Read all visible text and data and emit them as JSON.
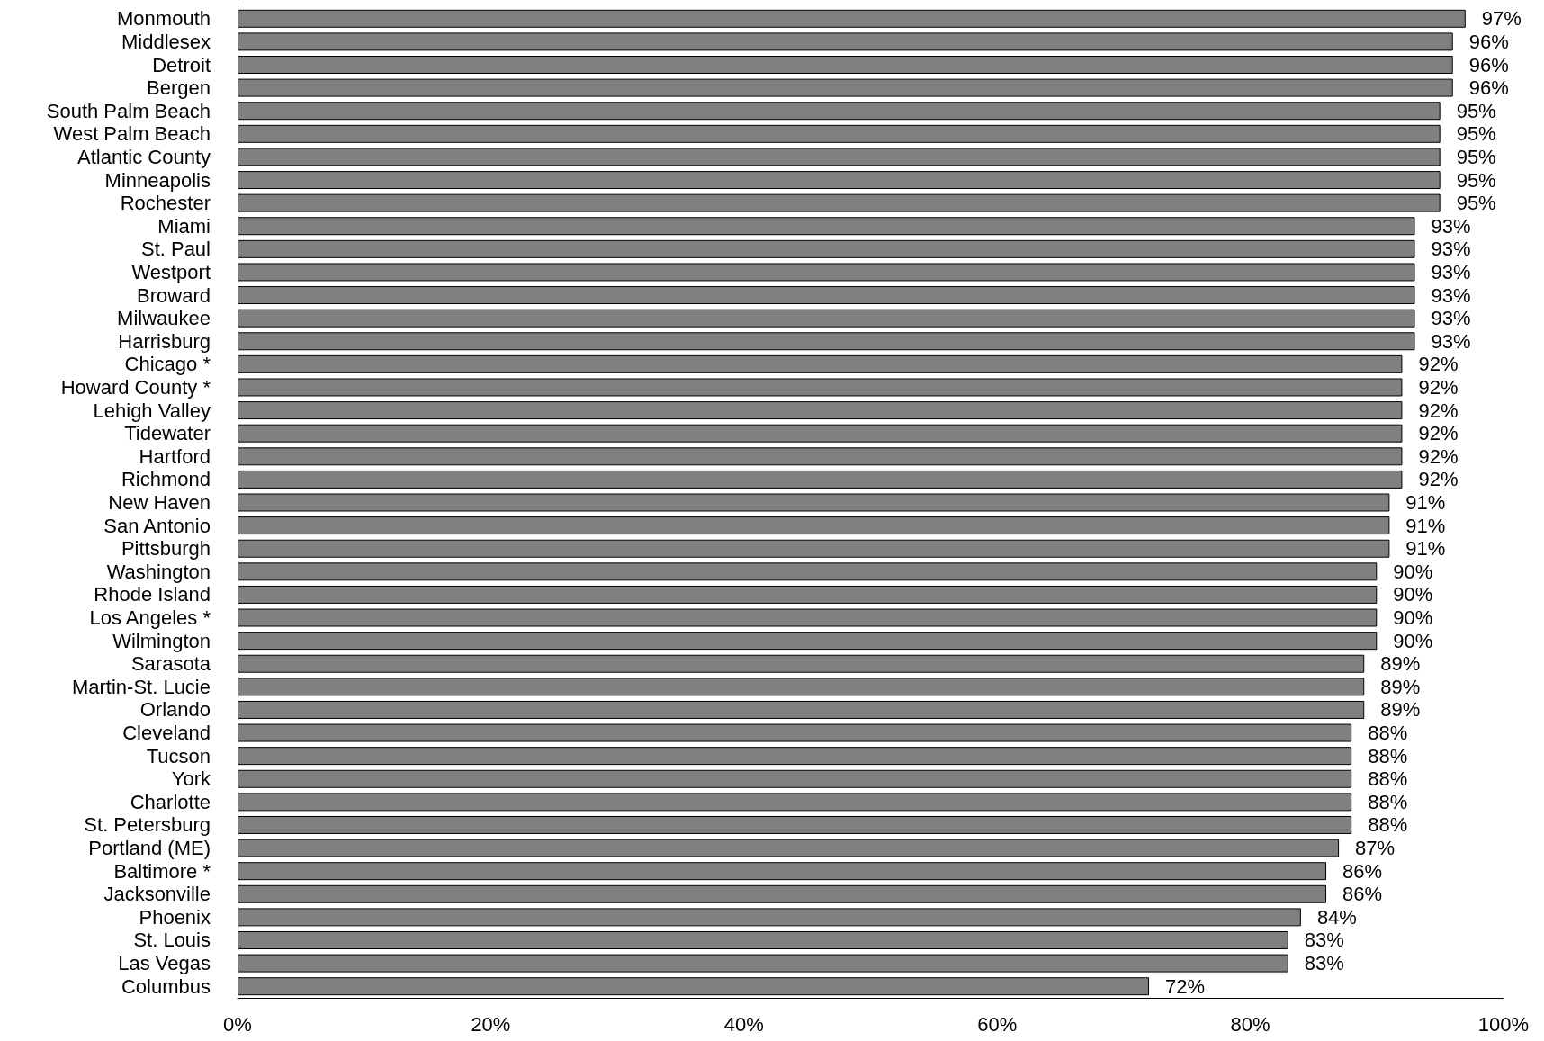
{
  "chart_data": {
    "type": "bar",
    "orientation": "horizontal",
    "categories": [
      "Monmouth",
      "Middlesex",
      "Detroit",
      "Bergen",
      "South Palm Beach",
      "West Palm Beach",
      "Atlantic County",
      "Minneapolis",
      "Rochester",
      "Miami",
      "St. Paul",
      "Westport",
      "Broward",
      "Milwaukee",
      "Harrisburg",
      "Chicago *",
      "Howard County *",
      "Lehigh Valley",
      "Tidewater",
      "Hartford",
      "Richmond",
      "New Haven",
      "San Antonio",
      "Pittsburgh",
      "Washington",
      "Rhode Island",
      "Los Angeles *",
      "Wilmington",
      "Sarasota",
      "Martin-St. Lucie",
      "Orlando",
      "Cleveland",
      "Tucson",
      "York",
      "Charlotte",
      "St. Petersburg",
      "Portland (ME)",
      "Baltimore *",
      "Jacksonville",
      "Phoenix",
      "St. Louis",
      "Las Vegas",
      "Columbus"
    ],
    "values": [
      97,
      96,
      96,
      96,
      95,
      95,
      95,
      95,
      95,
      93,
      93,
      93,
      93,
      93,
      93,
      92,
      92,
      92,
      92,
      92,
      92,
      91,
      91,
      91,
      90,
      90,
      90,
      90,
      89,
      89,
      89,
      88,
      88,
      88,
      88,
      88,
      87,
      86,
      86,
      84,
      83,
      83,
      72
    ],
    "value_labels": [
      "97%",
      "96%",
      "96%",
      "96%",
      "95%",
      "95%",
      "95%",
      "95%",
      "95%",
      "93%",
      "93%",
      "93%",
      "93%",
      "93%",
      "93%",
      "92%",
      "92%",
      "92%",
      "92%",
      "92%",
      "92%",
      "91%",
      "91%",
      "91%",
      "90%",
      "90%",
      "90%",
      "90%",
      "89%",
      "89%",
      "89%",
      "88%",
      "88%",
      "88%",
      "88%",
      "88%",
      "87%",
      "86%",
      "86%",
      "84%",
      "83%",
      "83%",
      "72%"
    ],
    "color": "#808080",
    "xlim": [
      0,
      100
    ],
    "xticks": [
      {
        "value": 0,
        "label": "0%"
      },
      {
        "value": 20,
        "label": "20%"
      },
      {
        "value": 40,
        "label": "40%"
      },
      {
        "value": 60,
        "label": "60%"
      },
      {
        "value": 80,
        "label": "80%"
      },
      {
        "value": 100,
        "label": "100%"
      }
    ],
    "grid": false
  }
}
